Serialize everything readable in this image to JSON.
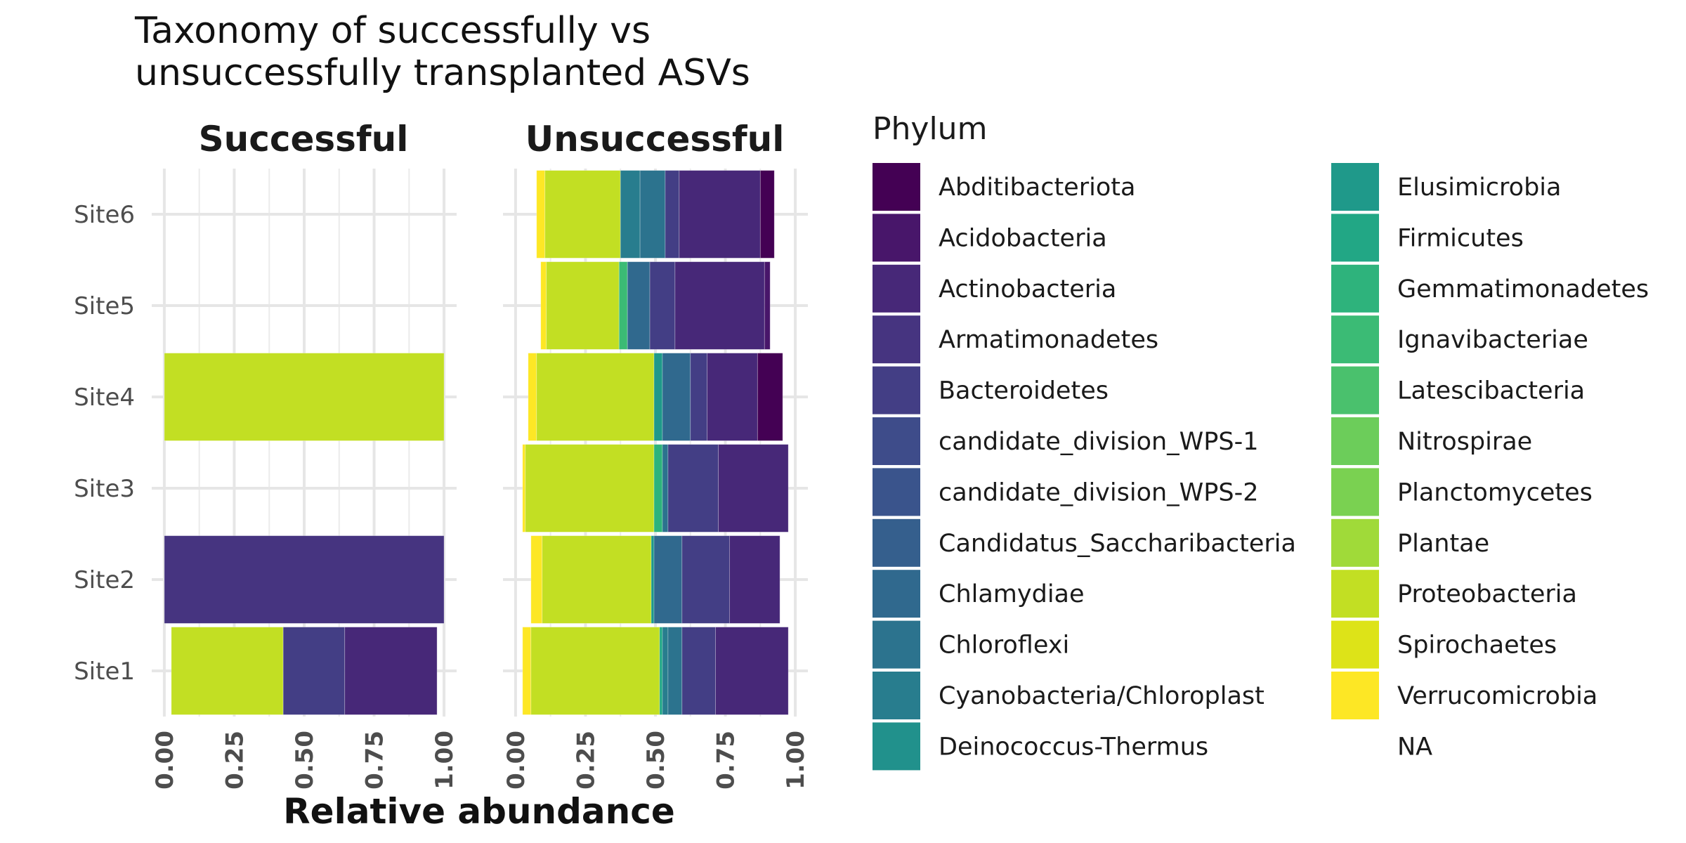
{
  "title_lines": [
    "Taxonomy of successfully vs",
    "unsuccessfully transplanted ASVs"
  ],
  "chart_data": {
    "type": "bar",
    "orientation": "horizontal",
    "stacked": true,
    "xlabel": "Relative abundance",
    "ylabel": "",
    "xlim": [
      0,
      1
    ],
    "x_ticks": [
      "0.00",
      "0.25",
      "0.50",
      "0.75",
      "1.00"
    ],
    "categories": [
      "Site1",
      "Site2",
      "Site3",
      "Site4",
      "Site5",
      "Site6"
    ],
    "grid": true,
    "legend": {
      "title": "Phylum",
      "position": "right",
      "entries": [
        {
          "name": "Abditibacteriota",
          "color": "#440154"
        },
        {
          "name": "Acidobacteria",
          "color": "#48166a"
        },
        {
          "name": "Actinobacteria",
          "color": "#472878"
        },
        {
          "name": "Armatimonadetes",
          "color": "#463480"
        },
        {
          "name": "Bacteroidetes",
          "color": "#433e85"
        },
        {
          "name": "candidate_division_WPS-1",
          "color": "#3e4c8a"
        },
        {
          "name": "candidate_division_WPS-2",
          "color": "#3a548c"
        },
        {
          "name": "Candidatus_Saccharibacteria",
          "color": "#355f8d"
        },
        {
          "name": "Chlamydiae",
          "color": "#30698e"
        },
        {
          "name": "Chloroflexi",
          "color": "#2c738e"
        },
        {
          "name": "Cyanobacteria/Chloroplast",
          "color": "#287d8e"
        },
        {
          "name": "Deinococcus-Thermus",
          "color": "#21918c"
        },
        {
          "name": "Elusimicrobia",
          "color": "#1f998a"
        },
        {
          "name": "Firmicutes",
          "color": "#22a785"
        },
        {
          "name": "Gemmatimonadetes",
          "color": "#2eb37c"
        },
        {
          "name": "Ignavibacteriae",
          "color": "#3bbb75"
        },
        {
          "name": "Latescibacteria",
          "color": "#4ac16d"
        },
        {
          "name": "Nitrospirae",
          "color": "#6ccd5a"
        },
        {
          "name": "Planctomycetes",
          "color": "#7ad151"
        },
        {
          "name": "Plantae",
          "color": "#a0da39"
        },
        {
          "name": "Proteobacteria",
          "color": "#c2df23"
        },
        {
          "name": "Spirochaetes",
          "color": "#dde318"
        },
        {
          "name": "Verrucomicrobia",
          "color": "#fde725"
        },
        {
          "name": "NA",
          "color": "#ffffff"
        }
      ]
    },
    "panels": [
      {
        "name": "Successful",
        "series": [
          {
            "category": "Site1",
            "segments": [
              {
                "phylum": "Proteobacteria",
                "value": 0.4
              },
              {
                "phylum": "Bacteroidetes",
                "value": 0.22
              },
              {
                "phylum": "Actinobacteria",
                "value": 0.33
              }
            ]
          },
          {
            "category": "Site2",
            "segments": [
              {
                "phylum": "Armatimonadetes",
                "value": 1.0
              }
            ]
          },
          {
            "category": "Site3",
            "segments": []
          },
          {
            "category": "Site4",
            "segments": [
              {
                "phylum": "Proteobacteria",
                "value": 1.0
              }
            ]
          },
          {
            "category": "Site5",
            "segments": []
          },
          {
            "category": "Site6",
            "segments": []
          }
        ]
      },
      {
        "name": "Unsuccessful",
        "series": [
          {
            "category": "Site1",
            "segments": [
              {
                "phylum": "Verrucomicrobia",
                "value": 0.03
              },
              {
                "phylum": "Proteobacteria",
                "value": 0.46
              },
              {
                "phylum": "Firmicutes",
                "value": 0.01
              },
              {
                "phylum": "Cyanobacteria/Chloroplast",
                "value": 0.02
              },
              {
                "phylum": "Chloroflexi",
                "value": 0.05
              },
              {
                "phylum": "Bacteroidetes",
                "value": 0.12
              },
              {
                "phylum": "Actinobacteria",
                "value": 0.26
              }
            ]
          },
          {
            "category": "Site2",
            "segments": [
              {
                "phylum": "Verrucomicrobia",
                "value": 0.04
              },
              {
                "phylum": "Proteobacteria",
                "value": 0.39
              },
              {
                "phylum": "Elusimicrobia",
                "value": 0.01
              },
              {
                "phylum": "Chlamydiae",
                "value": 0.1
              },
              {
                "phylum": "Bacteroidetes",
                "value": 0.17
              },
              {
                "phylum": "Actinobacteria",
                "value": 0.18
              }
            ]
          },
          {
            "category": "Site3",
            "segments": [
              {
                "phylum": "Verrucomicrobia",
                "value": 0.01
              },
              {
                "phylum": "Proteobacteria",
                "value": 0.46
              },
              {
                "phylum": "Gemmatimonadetes",
                "value": 0.03
              },
              {
                "phylum": "Chloroflexi",
                "value": 0.02
              },
              {
                "phylum": "Bacteroidetes",
                "value": 0.18
              },
              {
                "phylum": "Actinobacteria",
                "value": 0.25
              }
            ]
          },
          {
            "category": "Site4",
            "segments": [
              {
                "phylum": "Verrucomicrobia",
                "value": 0.03
              },
              {
                "phylum": "Proteobacteria",
                "value": 0.42
              },
              {
                "phylum": "Elusimicrobia",
                "value": 0.03
              },
              {
                "phylum": "Chlamydiae",
                "value": 0.1
              },
              {
                "phylum": "Bacteroidetes",
                "value": 0.06
              },
              {
                "phylum": "Actinobacteria",
                "value": 0.18
              },
              {
                "phylum": "Abditibacteriota",
                "value": 0.09
              }
            ]
          },
          {
            "category": "Site5",
            "segments": [
              {
                "phylum": "Verrucomicrobia",
                "value": 0.02
              },
              {
                "phylum": "Proteobacteria",
                "value": 0.26
              },
              {
                "phylum": "Ignavibacteriae",
                "value": 0.03
              },
              {
                "phylum": "Chlamydiae",
                "value": 0.08
              },
              {
                "phylum": "Bacteroidetes",
                "value": 0.09
              },
              {
                "phylum": "Actinobacteria",
                "value": 0.32
              },
              {
                "phylum": "Acidobacteria",
                "value": 0.02
              }
            ]
          },
          {
            "category": "Site6",
            "segments": [
              {
                "phylum": "Verrucomicrobia",
                "value": 0.03
              },
              {
                "phylum": "Proteobacteria",
                "value": 0.27
              },
              {
                "phylum": "Cyanobacteria/Chloroplast",
                "value": 0.07
              },
              {
                "phylum": "Chloroflexi",
                "value": 0.09
              },
              {
                "phylum": "Bacteroidetes",
                "value": 0.05
              },
              {
                "phylum": "Actinobacteria",
                "value": 0.29
              },
              {
                "phylum": "Abditibacteriota",
                "value": 0.05
              }
            ]
          }
        ]
      }
    ]
  }
}
